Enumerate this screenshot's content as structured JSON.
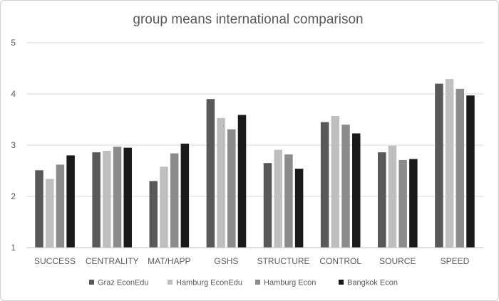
{
  "chart_data": {
    "type": "bar",
    "title": "group means international comparison",
    "xlabel": "",
    "ylabel": "",
    "ylim": [
      1,
      5
    ],
    "yticks": [
      "1",
      "2",
      "3",
      "4",
      "5"
    ],
    "grid": true,
    "legend_position": "bottom",
    "categories": [
      "SUCCESS",
      "CENTRALITY",
      "MAT/HAPP",
      "GSHS",
      "STRUCTURE",
      "CONTROL",
      "SOURCE",
      "SPEED"
    ],
    "series": [
      {
        "name": "Graz EconEdu",
        "color": "#595959",
        "values": [
          2.51,
          2.86,
          2.3,
          3.9,
          2.65,
          3.45,
          2.86,
          4.2
        ]
      },
      {
        "name": "Hamburg EconEdu",
        "color": "#bfbfbf",
        "values": [
          2.34,
          2.89,
          2.58,
          3.53,
          2.91,
          3.57,
          2.99,
          4.29
        ]
      },
      {
        "name": "Hamburg Econ",
        "color": "#8c8c8c",
        "values": [
          2.62,
          2.97,
          2.84,
          3.31,
          2.82,
          3.4,
          2.71,
          4.1
        ]
      },
      {
        "name": "Bangkok Econ",
        "color": "#1a1a1a",
        "values": [
          2.8,
          2.95,
          3.03,
          3.59,
          2.54,
          3.23,
          2.73,
          3.97
        ]
      }
    ]
  }
}
